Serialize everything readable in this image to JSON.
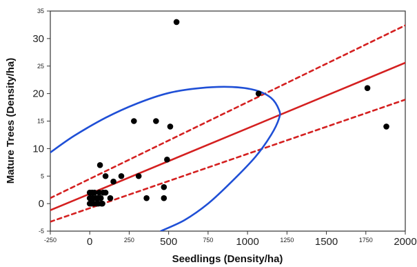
{
  "chart_data": {
    "type": "scatter",
    "title": "",
    "xlabel": "Seedlings (Density/ha)",
    "ylabel": "Mature Trees (Density/ha)",
    "xlim": [
      -250,
      2000
    ],
    "ylim": [
      -5,
      35
    ],
    "x_ticks": [
      -250,
      0,
      250,
      500,
      750,
      1000,
      1250,
      1500,
      1750,
      2000
    ],
    "x_tick_labels": [
      "-250",
      "0",
      "250",
      "500",
      "750",
      "1000",
      "1250",
      "1500",
      "1750",
      "2000"
    ],
    "y_ticks": [
      -5,
      0,
      5,
      10,
      15,
      20,
      25,
      30,
      35
    ],
    "y_tick_labels": [
      "-5",
      "0",
      "5",
      "10",
      "15",
      "20",
      "25",
      "30",
      "35"
    ],
    "grid": false,
    "legend": "none",
    "series": [
      {
        "kind": "points",
        "color": "#000000",
        "points": [
          [
            0,
            0
          ],
          [
            0,
            1
          ],
          [
            0,
            2
          ],
          [
            5,
            1
          ],
          [
            10,
            0
          ],
          [
            15,
            2
          ],
          [
            20,
            1
          ],
          [
            25,
            0
          ],
          [
            30,
            2
          ],
          [
            40,
            1
          ],
          [
            45,
            0
          ],
          [
            50,
            1
          ],
          [
            55,
            0
          ],
          [
            60,
            2
          ],
          [
            65,
            7
          ],
          [
            70,
            1
          ],
          [
            75,
            0
          ],
          [
            80,
            0
          ],
          [
            85,
            2
          ],
          [
            100,
            5
          ],
          [
            100,
            2
          ],
          [
            130,
            1
          ],
          [
            150,
            4
          ],
          [
            200,
            5
          ],
          [
            280,
            15
          ],
          [
            310,
            5
          ],
          [
            360,
            1
          ],
          [
            420,
            15
          ],
          [
            470,
            3
          ],
          [
            470,
            1
          ],
          [
            490,
            8
          ],
          [
            510,
            14
          ],
          [
            550,
            33
          ],
          [
            1070,
            20
          ],
          [
            1760,
            21
          ],
          [
            1880,
            14
          ]
        ]
      },
      {
        "kind": "line",
        "style": "solid",
        "color": "#d42020",
        "points": [
          [
            -250,
            -1.2
          ],
          [
            2000,
            25.6
          ]
        ]
      },
      {
        "kind": "line",
        "style": "dashed",
        "color": "#d42020",
        "points": [
          [
            -250,
            1.0
          ],
          [
            2000,
            32.4
          ]
        ]
      },
      {
        "kind": "line",
        "style": "dashed",
        "color": "#d42020",
        "points": [
          [
            -250,
            -3.3
          ],
          [
            2000,
            18.9
          ]
        ]
      },
      {
        "kind": "curve",
        "style": "solid",
        "color": "#1f4fd6",
        "points": [
          [
            -250,
            9.3
          ],
          [
            -100,
            12.3
          ],
          [
            100,
            15.6
          ],
          [
            300,
            18.2
          ],
          [
            500,
            20.1
          ],
          [
            700,
            21.0
          ],
          [
            900,
            21.2
          ],
          [
            1050,
            20.6
          ],
          [
            1150,
            19.2
          ],
          [
            1200,
            17.0
          ],
          [
            1200,
            15.5
          ],
          [
            1150,
            12.5
          ],
          [
            1050,
            8.5
          ],
          [
            900,
            4.0
          ],
          [
            750,
            0.0
          ],
          [
            600,
            -3.0
          ],
          [
            450,
            -5.0
          ]
        ]
      }
    ]
  }
}
